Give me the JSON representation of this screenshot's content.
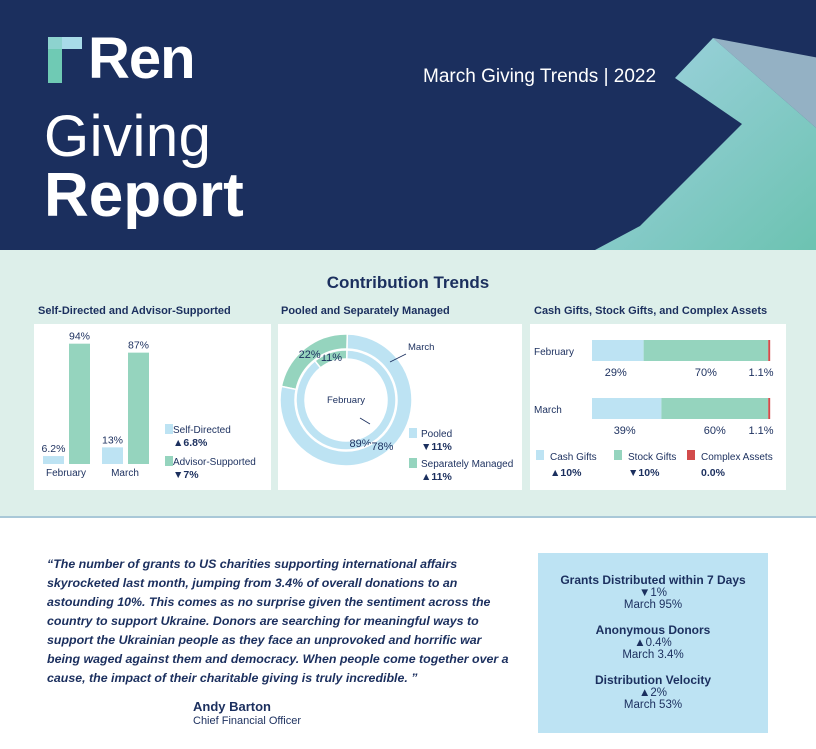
{
  "header": {
    "logo_text": "Ren",
    "title_line1": "Giving",
    "title_line2": "Report",
    "subtitle": "March Giving Trends | 2022"
  },
  "colors": {
    "navy": "#1b2f5e",
    "light_blue": "#bde3f3",
    "green": "#95d4be",
    "red": "#d24b4b",
    "panel_bg": "#ddefea"
  },
  "section_title": "Contribution Trends",
  "panels": {
    "self_directed_title": "Self-Directed and Advisor-Supported",
    "pooled_title": "Pooled and Separately Managed",
    "cash_title": "Cash Gifts, Stock Gifts, and Complex Assets"
  },
  "chart_data": [
    {
      "type": "bar",
      "title": "Self-Directed and Advisor-Supported",
      "categories": [
        "February",
        "March"
      ],
      "series": [
        {
          "name": "Self-Directed",
          "values": [
            6.2,
            13
          ],
          "labels": [
            "6.2%",
            "13%"
          ],
          "color": "#bde3f3"
        },
        {
          "name": "Advisor-Supported",
          "values": [
            94,
            87
          ],
          "labels": [
            "94%",
            "87%"
          ],
          "color": "#95d4be"
        }
      ],
      "legend": [
        {
          "name": "Self-Directed",
          "change": "▲6.8%"
        },
        {
          "name": "Advisor-Supported",
          "change": "▼7%"
        }
      ],
      "ylim": [
        0,
        100
      ]
    },
    {
      "type": "pie",
      "title": "Pooled and Separately Managed",
      "rings": [
        {
          "name": "February",
          "ring": "inner",
          "values": [
            89,
            11
          ],
          "labels": [
            "89%",
            "11%"
          ]
        },
        {
          "name": "March",
          "ring": "outer",
          "values": [
            78,
            22
          ],
          "labels": [
            "78%",
            "22%"
          ]
        }
      ],
      "categories": [
        "Pooled",
        "Separately Managed"
      ],
      "colors": [
        "#bde3f3",
        "#95d4be"
      ],
      "legend": [
        {
          "name": "Pooled",
          "change": "▼11%"
        },
        {
          "name": "Separately Managed",
          "change": "▲11%"
        }
      ]
    },
    {
      "type": "bar",
      "orientation": "horizontal",
      "stacked": true,
      "title": "Cash Gifts, Stock Gifts, and Complex Assets",
      "categories": [
        "February",
        "March"
      ],
      "series": [
        {
          "name": "Cash Gifts",
          "values": [
            29,
            39
          ],
          "labels": [
            "29%",
            "39%"
          ],
          "color": "#bde3f3"
        },
        {
          "name": "Stock Gifts",
          "values": [
            70,
            60
          ],
          "labels": [
            "70%",
            "60%"
          ],
          "color": "#95d4be"
        },
        {
          "name": "Complex Assets",
          "values": [
            1.1,
            1.1
          ],
          "labels": [
            "1.1%",
            "1.1%"
          ],
          "color": "#d24b4b"
        }
      ],
      "legend": [
        {
          "name": "Cash Gifts",
          "change": "▲10%"
        },
        {
          "name": "Stock Gifts",
          "change": "▼10%"
        },
        {
          "name": "Complex Assets",
          "change": "0.0%"
        }
      ],
      "xlim": [
        0,
        100
      ]
    }
  ],
  "quote": {
    "text": "“The number of grants to US charities supporting international affairs skyrocketed last month, jumping from 3.4% of overall donations to an astounding 10%. This comes as no surprise given the sentiment across the country to support Ukraine. Donors are searching for meaningful ways to support the Ukrainian people as they face an unprovoked and horrific war being waged against them and democracy. When people come together over a cause, the impact of their charitable giving is truly incredible. ”",
    "author": "Andy Barton",
    "role": "Chief Financial Officer"
  },
  "stats": [
    {
      "title": "Grants Distributed within 7 Days",
      "change": "▼1%",
      "value": "March 95%"
    },
    {
      "title": "Anonymous Donors",
      "change": "▲0.4%",
      "value": "March 3.4%"
    },
    {
      "title": "Distribution Velocity",
      "change": "▲2%",
      "value": "March 53%"
    }
  ]
}
